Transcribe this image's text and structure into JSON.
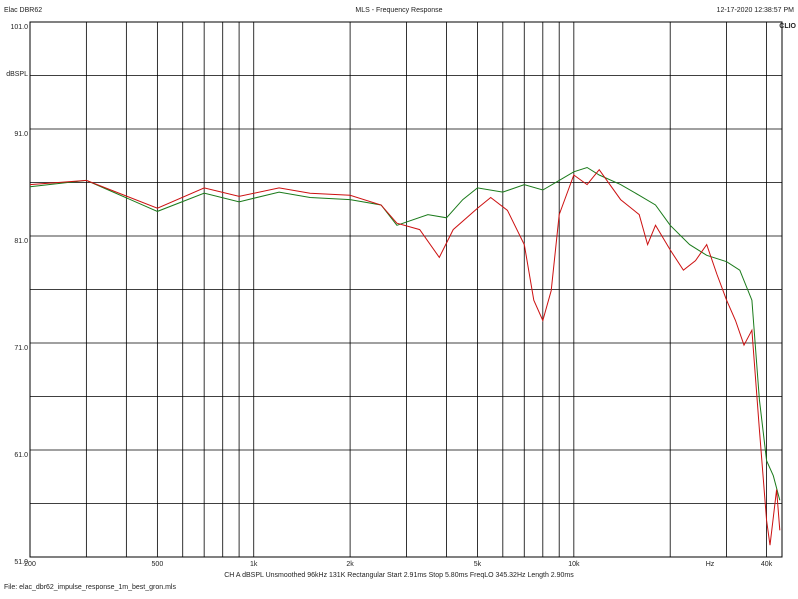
{
  "chart_data": {
    "type": "line",
    "title": "MLS - Frequency Response",
    "header_left": "Elac DBR62",
    "timestamp": "12-17-2020 12:38:57 PM",
    "brand": "CLIO",
    "ylabel": "dBSPL",
    "xlabel": "Hz",
    "footer": [
      "CH A  dBSPL  Unsmoothed  96kHz  131K  Rectangular  Start 2.91ms  Stop 5.80ms  FreqLO 345.32Hz  Length 2.90ms",
      "File: elac_dbr62_impulse_response_1m_best_gron.mls"
    ],
    "xscale": "log",
    "xlim": [
      200,
      44700
    ],
    "ylim": [
      51,
      101
    ],
    "yticks": [
      {
        "value": 101,
        "label": "101.0"
      },
      {
        "value": 91,
        "label": "91.0"
      },
      {
        "value": 81,
        "label": "81.0"
      },
      {
        "value": 71,
        "label": "71.0"
      },
      {
        "value": 61,
        "label": "61.0"
      },
      {
        "value": 51,
        "label": "51.0"
      }
    ],
    "ygrid_minor": [
      96,
      86,
      76,
      66,
      56
    ],
    "xticks": [
      200,
      500,
      {
        "value": 1000,
        "label": "1k"
      },
      {
        "value": 2000,
        "label": "2k"
      },
      {
        "value": 5000,
        "label": "5k"
      },
      {
        "value": 10000,
        "label": "10k"
      },
      {
        "value": 40000,
        "label": "40k"
      }
    ],
    "xgrid_minor": [
      300,
      400,
      600,
      700,
      800,
      900,
      3000,
      4000,
      6000,
      7000,
      8000,
      9000,
      20000,
      30000
    ],
    "grid": true,
    "series": [
      {
        "color": "#1a7a1a",
        "x": [
          200,
          300,
          500,
          700,
          900,
          1200,
          1500,
          2000,
          2500,
          2800,
          3500,
          4000,
          4500,
          5000,
          6000,
          7000,
          8000,
          9000,
          10000,
          11000,
          12000,
          14000,
          16000,
          18000,
          20000,
          23000,
          26000,
          30000,
          33000,
          36000,
          38000,
          40000,
          42000,
          44000
        ],
        "values": [
          85.6,
          86.2,
          83.3,
          85.0,
          84.2,
          85.1,
          84.6,
          84.4,
          83.9,
          82.0,
          83.0,
          82.7,
          84.4,
          85.5,
          85.1,
          85.8,
          85.3,
          86.2,
          87.0,
          87.4,
          86.7,
          85.8,
          84.8,
          83.9,
          82.0,
          80.2,
          79.2,
          78.6,
          77.8,
          75.0,
          65.7,
          60.0,
          58.6,
          56.3
        ]
      },
      {
        "color": "#cc1111",
        "x": [
          200,
          300,
          500,
          700,
          900,
          1200,
          1500,
          2000,
          2500,
          2800,
          3300,
          3800,
          4200,
          5000,
          5500,
          6200,
          7000,
          7500,
          8000,
          8500,
          9000,
          10000,
          11000,
          12000,
          14000,
          16000,
          17000,
          18000,
          20000,
          22000,
          24000,
          26000,
          28000,
          30000,
          32000,
          34000,
          36000,
          38000,
          40000,
          41000,
          43000,
          44000
        ],
        "values": [
          85.8,
          86.2,
          83.6,
          85.5,
          84.7,
          85.5,
          85.0,
          84.8,
          83.9,
          82.2,
          81.6,
          79.0,
          81.6,
          83.6,
          84.6,
          83.4,
          80.2,
          75.0,
          73.1,
          75.9,
          83.0,
          86.7,
          85.8,
          87.2,
          84.4,
          83.0,
          80.2,
          82.0,
          79.7,
          77.8,
          78.7,
          80.2,
          77.4,
          75.0,
          73.1,
          70.8,
          72.2,
          62.9,
          54.4,
          52.1,
          57.3,
          53.5
        ]
      }
    ]
  }
}
